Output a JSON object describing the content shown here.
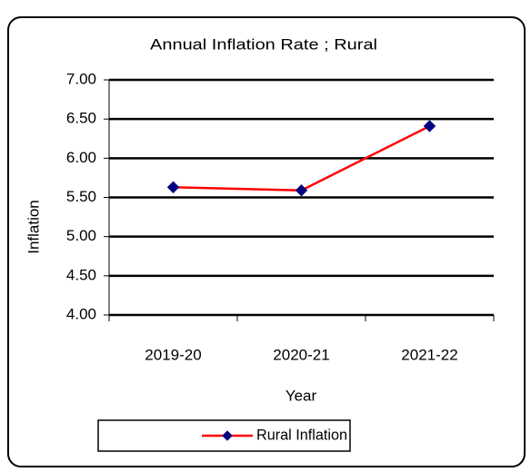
{
  "chart_data": {
    "type": "line",
    "title": "Annual Inflation Rate ;  Rural",
    "x_label": "Year",
    "y_label": "Inflation",
    "categories": [
      "2019-20",
      "2020-21",
      "2021-22"
    ],
    "series": [
      {
        "name": "Rural Inflation",
        "color": "#ff0000",
        "marker_color": "#000080",
        "values": [
          5.63,
          5.59,
          6.41
        ]
      }
    ],
    "ylim": [
      4,
      7
    ],
    "yticks": [
      {
        "value": 4,
        "label": "4.00"
      },
      {
        "value": 4.5,
        "label": "4.50"
      },
      {
        "value": 5,
        "label": "5.00"
      },
      {
        "value": 5.5,
        "label": "5.50"
      },
      {
        "value": 6,
        "label": "6.00"
      },
      {
        "value": 6.5,
        "label": "6.50"
      },
      {
        "value": 7,
        "label": "7.00"
      }
    ],
    "grid": true,
    "legend": "bottom"
  }
}
